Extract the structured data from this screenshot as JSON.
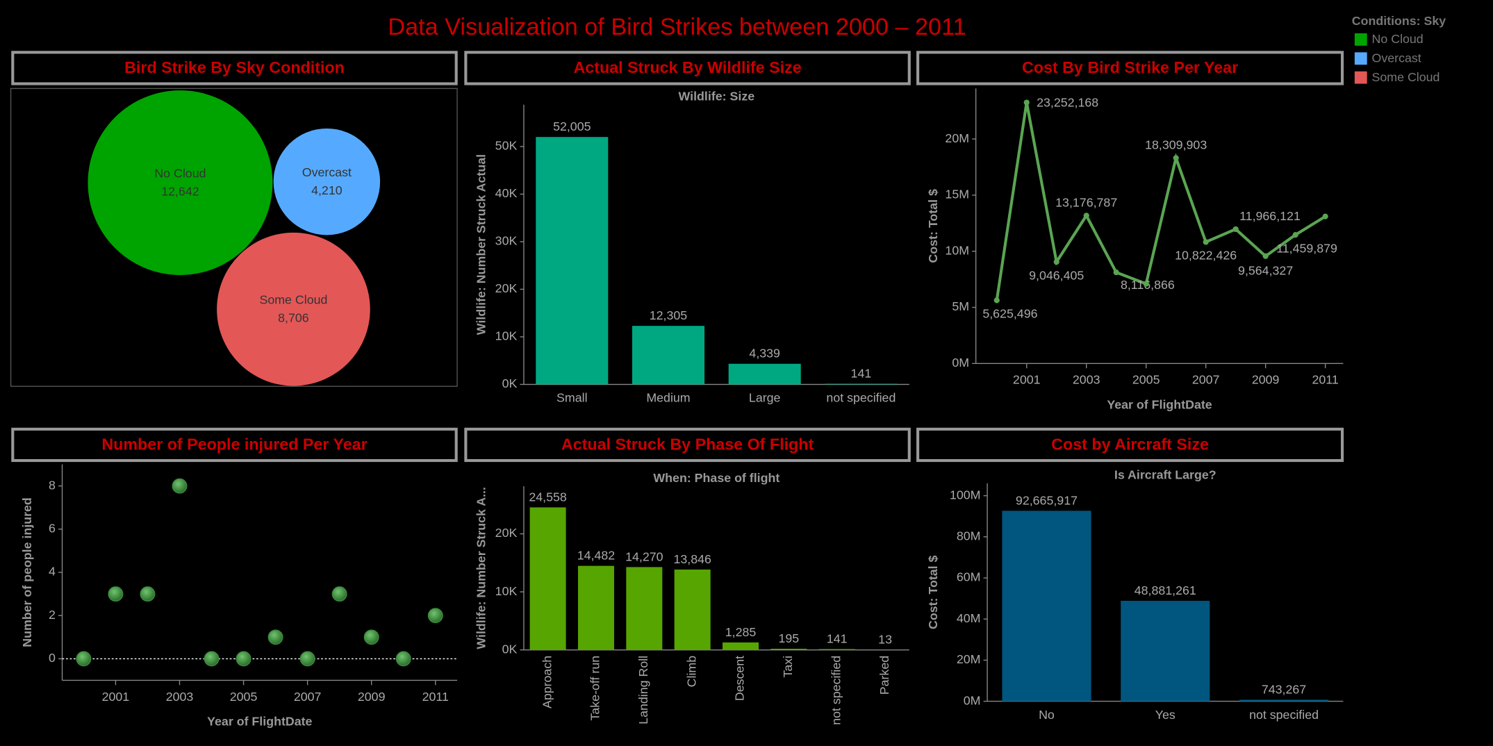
{
  "title": "Data Visualization of Bird Strikes between 2000 – 2011",
  "chart_data": [
    {
      "type": "bubble",
      "title": "Bird Strike By Sky Condition",
      "legend_title": "Conditions: Sky",
      "legend": "top-right",
      "categories": [
        "No Cloud",
        "Overcast",
        "Some Cloud"
      ],
      "values": [
        12642,
        4210,
        8706
      ],
      "value_labels": [
        "12,642",
        "4,210",
        "8,706"
      ],
      "colors": [
        "#00a400",
        "#55aaff",
        "#e45757"
      ]
    },
    {
      "type": "bar",
      "title": "Actual Struck By Wildlife Size",
      "subtitle": "Wildlife: Size",
      "ylabel": "Wildlife: Number Struck Actual",
      "categories": [
        "Small",
        "Medium",
        "Large",
        "not specified"
      ],
      "values": [
        52005,
        12305,
        4339,
        141
      ],
      "value_labels": [
        "52,005",
        "12,305",
        "4,339",
        "141"
      ],
      "color": "#00a882",
      "ylim": [
        0,
        58800
      ],
      "yticks": [
        {
          "value": 0,
          "label": "0K"
        },
        {
          "value": 10000,
          "label": "10K"
        },
        {
          "value": 20000,
          "label": "20K"
        },
        {
          "value": 30000,
          "label": "30K"
        },
        {
          "value": 40000,
          "label": "40K"
        },
        {
          "value": 50000,
          "label": "50K"
        }
      ]
    },
    {
      "type": "line",
      "title": "Cost By Bird Strike Per Year",
      "xlabel": "Year of FlightDate",
      "ylabel": "Cost: Total $",
      "x": [
        2000,
        2001,
        2002,
        2003,
        2004,
        2005,
        2006,
        2007,
        2008,
        2009,
        2010,
        2011
      ],
      "values": [
        5625496,
        23252168,
        9046405,
        13176787,
        8116866,
        7100000,
        18309903,
        10822426,
        11966121,
        9564327,
        11459879,
        13100000
      ],
      "value_labels": [
        "5,625,496",
        "23,252,168",
        "9,046,405",
        "13,176,787",
        "8,116,866",
        null,
        "18,309,903",
        "10,822,426",
        "11,966,121",
        "9,564,327",
        "11,459,879",
        null
      ],
      "color": "#5aa552",
      "xlim": [
        1999.3,
        2011.6
      ],
      "xticks": [
        2001,
        2003,
        2005,
        2007,
        2009,
        2011
      ],
      "ylim": [
        0,
        24500000
      ],
      "yticks": [
        {
          "value": 0,
          "label": "0M"
        },
        {
          "value": 5000000,
          "label": "5M"
        },
        {
          "value": 10000000,
          "label": "10M"
        },
        {
          "value": 15000000,
          "label": "15M"
        },
        {
          "value": 20000000,
          "label": "20M"
        }
      ]
    },
    {
      "type": "scatter",
      "title": "Number of People injured Per Year",
      "xlabel": "Year of FlightDate",
      "ylabel": "Number of people injured",
      "x": [
        2000,
        2001,
        2002,
        2003,
        2004,
        2005,
        2006,
        2007,
        2008,
        2009,
        2010,
        2011
      ],
      "values": [
        0,
        3,
        3,
        8,
        0,
        0,
        1,
        0,
        3,
        1,
        0,
        2
      ],
      "color": "#3d8b3d",
      "xlim": [
        1999.33,
        2011.68
      ],
      "xticks": [
        2001,
        2003,
        2005,
        2007,
        2009,
        2011
      ],
      "ylim": [
        -1,
        9
      ],
      "yticks": [
        0,
        2,
        4,
        6,
        8
      ],
      "zero_line": true
    },
    {
      "type": "bar",
      "title": "Actual Struck By Phase Of Flight",
      "subtitle": "When: Phase of flight",
      "ylabel": "Wildlife: Number Struck A...",
      "categories": [
        "Approach",
        "Take-off run",
        "Landing Roll",
        "Climb",
        "Descent",
        "Taxi",
        "not specified",
        "Parked"
      ],
      "values": [
        24558,
        14482,
        14270,
        13846,
        1285,
        195,
        141,
        13
      ],
      "value_labels": [
        "24,558",
        "14,482",
        "14,270",
        "13,846",
        "1,285",
        "195",
        "141",
        "13"
      ],
      "color": "#57a500",
      "label_rotation": -90,
      "ylim": [
        0,
        28200
      ],
      "yticks": [
        {
          "value": 0,
          "label": "0K"
        },
        {
          "value": 10000,
          "label": "10K"
        },
        {
          "value": 20000,
          "label": "20K"
        }
      ]
    },
    {
      "type": "bar",
      "title": "Cost by Aircraft Size",
      "subtitle": "Is Aircraft Large?",
      "ylabel": "Cost: Total $",
      "categories": [
        "No",
        "Yes",
        "not specified"
      ],
      "values": [
        92665917,
        48881261,
        743267
      ],
      "value_labels": [
        "92,665,917",
        "48,881,261",
        "743,267"
      ],
      "color": "#00567f",
      "ylim": [
        0,
        106000000
      ],
      "yticks": [
        {
          "value": 0,
          "label": "0M"
        },
        {
          "value": 20000000,
          "label": "20M"
        },
        {
          "value": 40000000,
          "label": "40M"
        },
        {
          "value": 60000000,
          "label": "60M"
        },
        {
          "value": 80000000,
          "label": "80M"
        },
        {
          "value": 100000000,
          "label": "100M"
        }
      ]
    }
  ]
}
